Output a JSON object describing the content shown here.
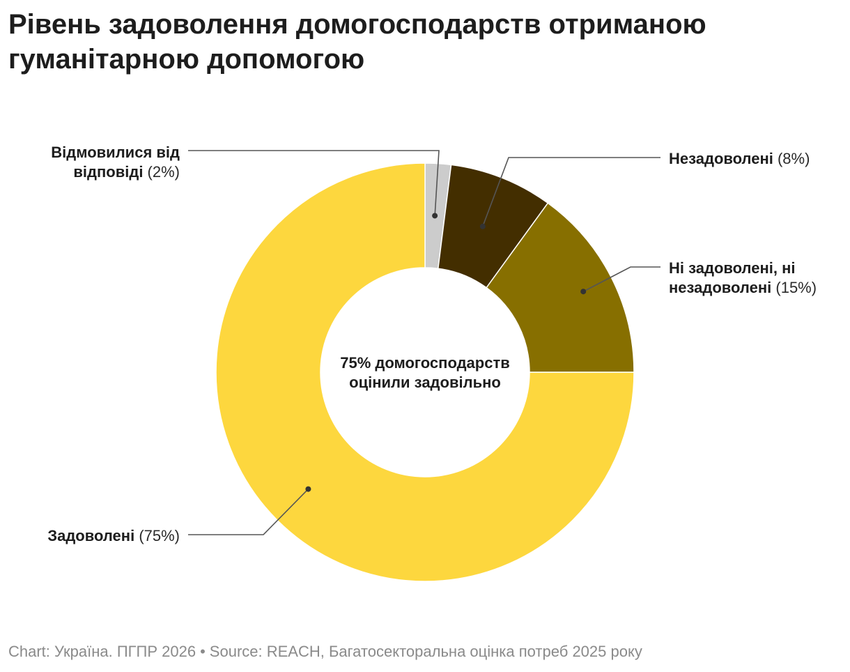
{
  "chart_data": {
    "type": "pie",
    "title": "Рівень задоволення домогосподарств отриманою гуманітарною допомогою",
    "center_label": [
      "75% домогосподарств",
      "оцінили задовільно"
    ],
    "slices": [
      {
        "name": "Відмовилися від відповіді",
        "label_lines": [
          "Відмовилися від",
          "відповіді"
        ],
        "value": 2,
        "pct_text": "(2%)",
        "color": "#cccccc",
        "side": "left"
      },
      {
        "name": "Незадоволені",
        "label_lines": [
          "Незадоволені"
        ],
        "value": 8,
        "pct_text": "(8%)",
        "color": "#432e00",
        "side": "right"
      },
      {
        "name": "Ні задоволені, ні незадоволені",
        "label_lines": [
          "Ні задоволені, ні",
          "незадоволені"
        ],
        "value": 15,
        "pct_text": "(15%)",
        "color": "#876f00",
        "side": "right"
      },
      {
        "name": "Задоволені",
        "label_lines": [
          "Задоволені"
        ],
        "value": 75,
        "pct_text": "(75%)",
        "color": "#fdd73e",
        "side": "left"
      }
    ]
  },
  "footer": {
    "chart_credit": "Chart: Україна. ПГПР 2026",
    "separator": "•",
    "source": "Source: REACH, Багатосекторальна оцінка потреб 2025 року"
  }
}
